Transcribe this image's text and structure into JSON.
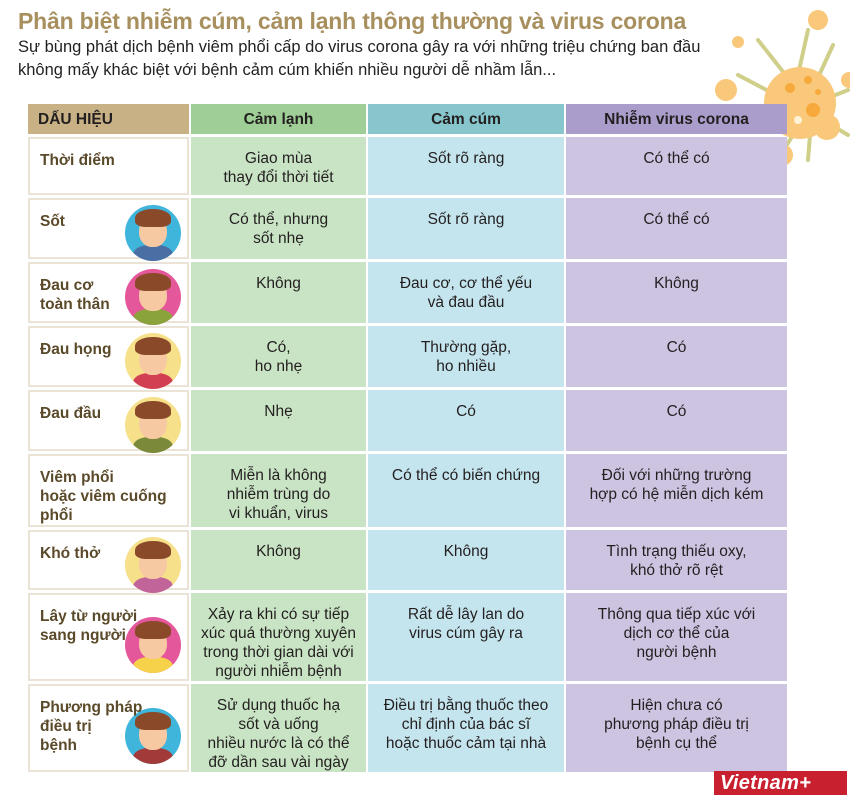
{
  "header": {
    "title": "Phân biệt nhiễm cúm, cảm lạnh thông thường và virus corona",
    "subtitle": "Sự bùng phát dịch bệnh viêm phổi cấp do virus corona gây ra với những triệu chứng ban đầu không mấy khác biệt với bệnh cảm cúm khiến nhiều người dễ nhầm lẫn..."
  },
  "colors": {
    "title": "#a78f5e",
    "header_sign": "#c7b185",
    "header_cold": "#9fcf97",
    "header_flu": "#87c6cd",
    "header_corona": "#ab9dcb",
    "cell_cold": "#c9e4c4",
    "cell_flu": "#c5e5ee",
    "cell_corona": "#cdc4e1",
    "logo": "#c8202f"
  },
  "table": {
    "columns": [
      "DẤU HIỆU",
      "Cảm lạnh",
      "Cảm cúm",
      "Nhiễm virus corona"
    ],
    "rows": [
      {
        "sign": "Thời điểm",
        "cold": "Giao mùa\nthay đổi thời tiết",
        "flu": "Sốt rõ ràng",
        "corona": "Có thể có",
        "avatar": "none"
      },
      {
        "sign": "Sốt",
        "cold": "Có thể, nhưng\nsốt nhẹ",
        "flu": "Sốt rõ ràng",
        "corona": "Có thể có",
        "avatar": "fever-person-icon"
      },
      {
        "sign": "Đau cơ\ntoàn thân",
        "cold": "Không",
        "flu": "Đau cơ, cơ thể yếu\nvà đau đầu",
        "corona": "Không",
        "avatar": "body-ache-person-icon"
      },
      {
        "sign": "Đau họng",
        "cold": "Có,\nho nhẹ",
        "flu": "Thường gặp,\nho nhiều",
        "corona": "Có",
        "avatar": "sore-throat-person-icon"
      },
      {
        "sign": "Đau đầu",
        "cold": "Nhẹ",
        "flu": "Có",
        "corona": "Có",
        "avatar": "headache-person-icon"
      },
      {
        "sign": "Viêm phổi\nhoặc viêm cuống\nphổi",
        "cold": "Miễn là không\nnhiễm trùng do\nvi khuẩn, virus",
        "flu": "Có thể có biến chứng",
        "corona": "Đối với những trường\nhợp có hệ miễn dịch kém",
        "avatar": "none"
      },
      {
        "sign": "Khó thở",
        "cold": "Không",
        "flu": "Không",
        "corona": "Tình trạng thiếu oxy,\nkhó thở rõ rệt",
        "avatar": "breathless-person-icon"
      },
      {
        "sign": "Lây từ người\nsang người",
        "cold": "Xảy ra khi có sự tiếp\nxúc quá thường xuyên\ntrong thời gian dài với\nngười nhiễm bệnh",
        "flu": "Rất dễ lây lan do\nvirus cúm gây ra",
        "corona": "Thông qua tiếp xúc với\ndịch cơ thể của\nngười bệnh",
        "avatar": "sneezing-person-icon"
      },
      {
        "sign": "Phương pháp\nđiều trị\nbệnh",
        "cold": "Sử dụng thuốc hạ\nsốt và uống\nnhiều nước là có thể\nđỡ dần sau vài ngày",
        "flu": "Điều trị bằng thuốc theo\nchỉ định của bác sĩ\nhoặc thuốc cảm tại nhà",
        "corona": "Hiện chưa có\nphương pháp điều trị\nbệnh cụ thể",
        "avatar": "sick-person-icon"
      }
    ]
  },
  "icons": {
    "virus": "virus-icon"
  },
  "footer": {
    "logo": "Vietnam+"
  }
}
